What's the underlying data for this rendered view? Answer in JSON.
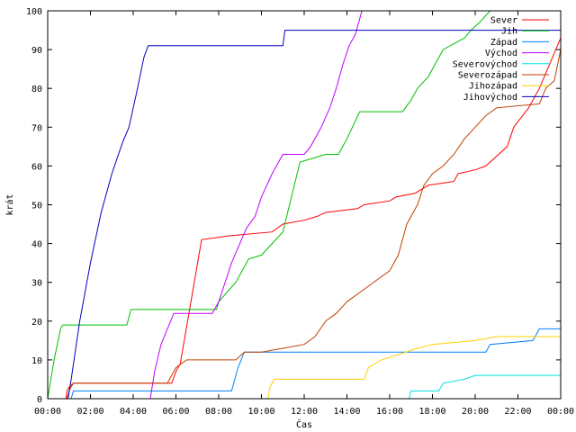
{
  "chart_data": {
    "type": "line",
    "xlabel": "Čas",
    "ylabel": "krát",
    "x_unit": "hours",
    "xlim": [
      0,
      24
    ],
    "ylim": [
      0,
      100
    ],
    "x_ticks": [
      "00:00",
      "02:00",
      "04:00",
      "06:00",
      "08:00",
      "10:00",
      "12:00",
      "14:00",
      "16:00",
      "18:00",
      "20:00",
      "22:00",
      "00:00"
    ],
    "y_ticks": [
      "0",
      "10",
      "20",
      "30",
      "40",
      "50",
      "60",
      "70",
      "80",
      "90",
      "100"
    ],
    "grid": false,
    "legend": "top-right",
    "series": [
      {
        "name": "Sever",
        "color": "#ff0000",
        "points": [
          [
            0,
            0
          ],
          [
            0.85,
            0
          ],
          [
            0.9,
            2
          ],
          [
            1.0,
            3
          ],
          [
            1.2,
            4
          ],
          [
            1.4,
            4
          ],
          [
            5.8,
            4
          ],
          [
            6.0,
            7
          ],
          [
            6.2,
            9
          ],
          [
            7.2,
            41
          ],
          [
            8.5,
            42
          ],
          [
            10.5,
            43
          ],
          [
            11.0,
            45
          ],
          [
            12.0,
            46
          ],
          [
            12.6,
            47
          ],
          [
            13.0,
            48
          ],
          [
            14.5,
            49
          ],
          [
            14.8,
            50
          ],
          [
            16.0,
            51
          ],
          [
            16.3,
            52
          ],
          [
            17.2,
            53
          ],
          [
            17.8,
            55
          ],
          [
            19.0,
            56
          ],
          [
            19.2,
            58
          ],
          [
            20.0,
            59
          ],
          [
            20.5,
            60
          ],
          [
            21.5,
            65
          ],
          [
            21.8,
            70
          ],
          [
            22.5,
            75
          ],
          [
            23.0,
            80
          ],
          [
            24.0,
            93
          ]
        ]
      },
      {
        "name": "Jih",
        "color": "#00c000",
        "points": [
          [
            0,
            0
          ],
          [
            0.3,
            10
          ],
          [
            0.6,
            18
          ],
          [
            0.7,
            19
          ],
          [
            2.7,
            19
          ],
          [
            3.7,
            19
          ],
          [
            3.8,
            21
          ],
          [
            3.9,
            23
          ],
          [
            7.9,
            23
          ],
          [
            8.0,
            25
          ],
          [
            8.8,
            30
          ],
          [
            9.4,
            36
          ],
          [
            10.0,
            37
          ],
          [
            10.5,
            40
          ],
          [
            11.0,
            43
          ],
          [
            11.8,
            61
          ],
          [
            13.0,
            63
          ],
          [
            13.6,
            63
          ],
          [
            14.0,
            67
          ],
          [
            14.6,
            74
          ],
          [
            16.6,
            74
          ],
          [
            17.0,
            77
          ],
          [
            17.3,
            80
          ],
          [
            17.8,
            83
          ],
          [
            18.5,
            90
          ],
          [
            19.5,
            93
          ],
          [
            19.8,
            95
          ],
          [
            20.2,
            97
          ],
          [
            20.7,
            100
          ]
        ]
      },
      {
        "name": "Západ",
        "color": "#0080ff",
        "points": [
          [
            0,
            0
          ],
          [
            1.1,
            0
          ],
          [
            1.2,
            2
          ],
          [
            8.6,
            2
          ],
          [
            8.9,
            8
          ],
          [
            9.2,
            12
          ],
          [
            20.5,
            12
          ],
          [
            20.7,
            14
          ],
          [
            22.7,
            15
          ],
          [
            23.0,
            18
          ],
          [
            24.0,
            18
          ]
        ]
      },
      {
        "name": "Východ",
        "color": "#c000ff",
        "points": [
          [
            0,
            0
          ],
          [
            4.8,
            0
          ],
          [
            5.0,
            7
          ],
          [
            5.3,
            14
          ],
          [
            5.6,
            18
          ],
          [
            5.9,
            22
          ],
          [
            7.7,
            22
          ],
          [
            8.0,
            25
          ],
          [
            8.6,
            35
          ],
          [
            9.3,
            44
          ],
          [
            9.7,
            47
          ],
          [
            10.0,
            52
          ],
          [
            10.5,
            58
          ],
          [
            11.0,
            63
          ],
          [
            12.0,
            63
          ],
          [
            12.3,
            65
          ],
          [
            12.8,
            70
          ],
          [
            13.2,
            75
          ],
          [
            13.5,
            80
          ],
          [
            13.8,
            86
          ],
          [
            14.1,
            91
          ],
          [
            14.4,
            94
          ],
          [
            14.7,
            100
          ]
        ]
      },
      {
        "name": "Severovýchod",
        "color": "#00e0e0",
        "points": [
          [
            0,
            0
          ],
          [
            16.9,
            0
          ],
          [
            17.0,
            2
          ],
          [
            18.3,
            2
          ],
          [
            18.5,
            4
          ],
          [
            19.5,
            5
          ],
          [
            20.0,
            6
          ],
          [
            24.0,
            6
          ]
        ]
      },
      {
        "name": "Severozápad",
        "color": "#c04000",
        "points": [
          [
            0,
            0
          ],
          [
            0.9,
            0
          ],
          [
            1.0,
            2
          ],
          [
            1.1,
            3
          ],
          [
            1.2,
            4
          ],
          [
            5.6,
            4
          ],
          [
            6.0,
            8
          ],
          [
            6.5,
            10
          ],
          [
            8.8,
            10
          ],
          [
            9.2,
            12
          ],
          [
            10.0,
            12
          ],
          [
            11.0,
            13
          ],
          [
            12.0,
            14
          ],
          [
            12.5,
            16
          ],
          [
            13.0,
            20
          ],
          [
            13.5,
            22
          ],
          [
            14.0,
            25
          ],
          [
            15.0,
            29
          ],
          [
            16.0,
            33
          ],
          [
            16.4,
            37
          ],
          [
            16.8,
            45
          ],
          [
            17.3,
            50
          ],
          [
            17.6,
            55
          ],
          [
            18.0,
            58
          ],
          [
            18.5,
            60
          ],
          [
            19.0,
            63
          ],
          [
            19.5,
            67
          ],
          [
            20.0,
            70
          ],
          [
            20.5,
            73
          ],
          [
            21.0,
            75
          ],
          [
            23.0,
            76
          ],
          [
            23.3,
            80
          ],
          [
            23.7,
            82
          ],
          [
            24.0,
            90
          ]
        ]
      },
      {
        "name": "Jihozápad",
        "color": "#ffd000",
        "points": [
          [
            0,
            0
          ],
          [
            10.3,
            0
          ],
          [
            10.4,
            3
          ],
          [
            10.6,
            5
          ],
          [
            14.8,
            5
          ],
          [
            15.0,
            8
          ],
          [
            15.6,
            10
          ],
          [
            16.2,
            11
          ],
          [
            17.3,
            13
          ],
          [
            18.0,
            14
          ],
          [
            20.0,
            15
          ],
          [
            21.0,
            16
          ],
          [
            24.0,
            16
          ]
        ]
      },
      {
        "name": "Jihovýchod",
        "color": "#0000c0",
        "points": [
          [
            0,
            0
          ],
          [
            0.95,
            0
          ],
          [
            1.1,
            5
          ],
          [
            1.5,
            20
          ],
          [
            2.0,
            35
          ],
          [
            2.5,
            48
          ],
          [
            3.0,
            58
          ],
          [
            3.5,
            66
          ],
          [
            3.8,
            70
          ],
          [
            4.2,
            80
          ],
          [
            4.5,
            88
          ],
          [
            4.7,
            91
          ],
          [
            11.0,
            91
          ],
          [
            11.1,
            95
          ],
          [
            24.0,
            95
          ]
        ]
      }
    ]
  }
}
